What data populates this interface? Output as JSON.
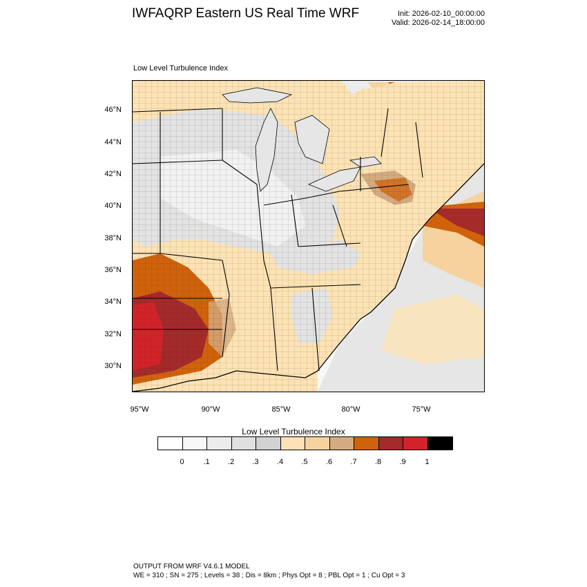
{
  "header": {
    "title": "IWFAQRP Eastern US Real Time WRF",
    "init": "Init: 2026-02-10_00:00:00",
    "valid": "Valid: 2026-02-14_18:00:00"
  },
  "map": {
    "subtitle": "Low Level Turbulence Index",
    "lat_labels": [
      "46°N",
      "44°N",
      "42°N",
      "40°N",
      "38°N",
      "36°N",
      "34°N",
      "32°N",
      "30°N"
    ],
    "lon_labels": [
      "95°W",
      "90°W",
      "85°W",
      "80°W",
      "75°W"
    ],
    "colors": {
      "none": "#ffffff",
      "very_low": "#f2f2f2",
      "low": "#e0e0e0",
      "low_mid": "#d0d0d0",
      "mid": "#fde3b4",
      "mid_high": "#f5d29e",
      "high": "#d4ab80",
      "orange": "#d0620c",
      "dark_red": "#a52a2a",
      "red": "#d2232a",
      "max": "#000000"
    }
  },
  "colorbar": {
    "title": "Low Level Turbulence Index",
    "colors": [
      "#ffffff",
      "#f7f7f7",
      "#ececec",
      "#e0e0e0",
      "#d2d2d2",
      "#fde3b4",
      "#f5d29e",
      "#d4ab80",
      "#d0620c",
      "#a52a2a",
      "#d2232a",
      "#000000"
    ],
    "ticks": [
      "0",
      ".1",
      ".2",
      ".3",
      ".4",
      ".5",
      ".6",
      ".7",
      ".8",
      ".9",
      "1"
    ]
  },
  "footer": {
    "line1": "OUTPUT FROM WRF V4.6.1 MODEL",
    "line2": "WE = 310 ; SN = 275 ; Levels = 38 ; Dis = 8km ; Phys Opt = 8 ; PBL Opt = 1 ; Cu Opt = 3"
  }
}
